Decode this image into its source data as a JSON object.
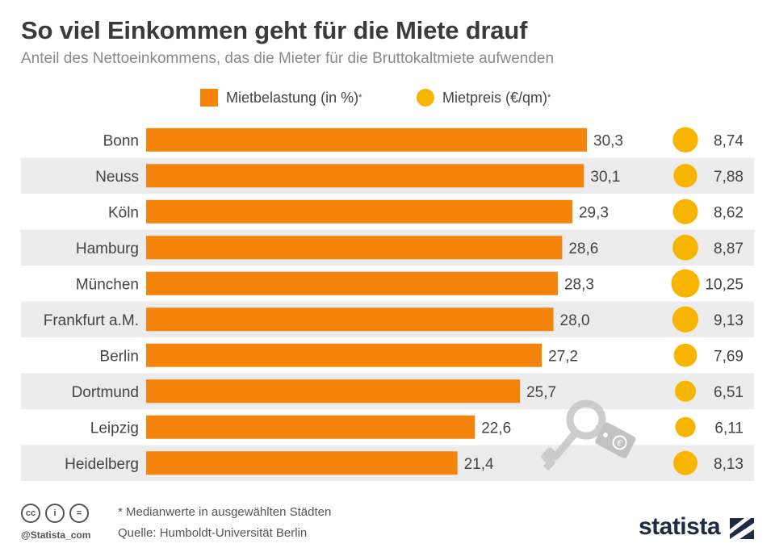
{
  "header": {
    "title": "So viel Einkommen geht für die Miete drauf",
    "subtitle": "Anteil des Nettoeinkommens, das die Mieter für die Bruttokaltmiete aufwenden"
  },
  "legend": {
    "bar_label": "Mietbelastung (in %)",
    "dot_label": "Mietpreis (€/qm)",
    "asterisk": "*"
  },
  "colors": {
    "bar": "#f5840c",
    "dot": "#f7b500",
    "row_band": "#ececec",
    "brand": "#1f2a44"
  },
  "chart_data": {
    "type": "bar",
    "orientation": "horizontal",
    "categories": [
      "Bonn",
      "Neuss",
      "Köln",
      "Hamburg",
      "München",
      "Frankfurt a.M.",
      "Berlin",
      "Dortmund",
      "Leipzig",
      "Heidelberg"
    ],
    "series": [
      {
        "name": "Mietbelastung (in %)",
        "values": [
          30.3,
          30.1,
          29.3,
          28.6,
          28.3,
          28.0,
          27.2,
          25.7,
          22.6,
          21.4
        ],
        "labels": [
          "30,3",
          "30,1",
          "29,3",
          "28,6",
          "28,3",
          "28,0",
          "27,2",
          "25,7",
          "22,6",
          "21,4"
        ]
      },
      {
        "name": "Mietpreis (€/qm)",
        "values": [
          8.74,
          7.88,
          8.62,
          8.87,
          10.25,
          9.13,
          7.69,
          6.51,
          6.11,
          8.13
        ],
        "labels": [
          "8,74",
          "7,88",
          "8,62",
          "8,87",
          "10,25",
          "9,13",
          "7,69",
          "6,51",
          "6,11",
          "8,13"
        ]
      }
    ],
    "alternating_row_bands": true
  },
  "footer": {
    "note": "* Medianwerte in ausgewählten Städten",
    "source": "Quelle: Humboldt-Universität Berlin",
    "handle": "@Statista_com",
    "brand": "statista",
    "license_icons": [
      "cc",
      "i",
      "="
    ]
  }
}
